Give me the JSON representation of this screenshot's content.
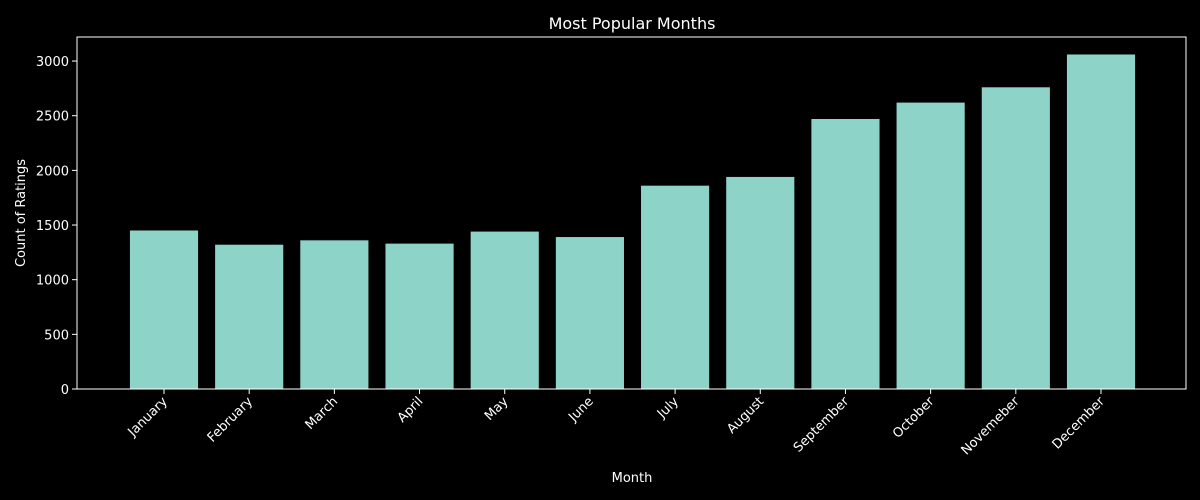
{
  "chart_data": {
    "type": "bar",
    "title": "Most Popular Months",
    "xlabel": "Month",
    "ylabel": "Count of Ratings",
    "categories": [
      "January",
      "February",
      "March",
      "April",
      "May",
      "June",
      "July",
      "August",
      "September",
      "October",
      "Novemeber",
      "December"
    ],
    "values": [
      1450,
      1320,
      1360,
      1330,
      1440,
      1390,
      1860,
      1940,
      2470,
      2620,
      2760,
      3060
    ],
    "ylim": [
      0,
      3220
    ],
    "yticks": [
      0,
      500,
      1000,
      1500,
      2000,
      2500,
      3000
    ],
    "grid": false,
    "legend": "none",
    "colors": {
      "bar": "#8dd3c7",
      "background": "#000000",
      "axis": "#ffffff",
      "text": "#ffffff"
    }
  }
}
